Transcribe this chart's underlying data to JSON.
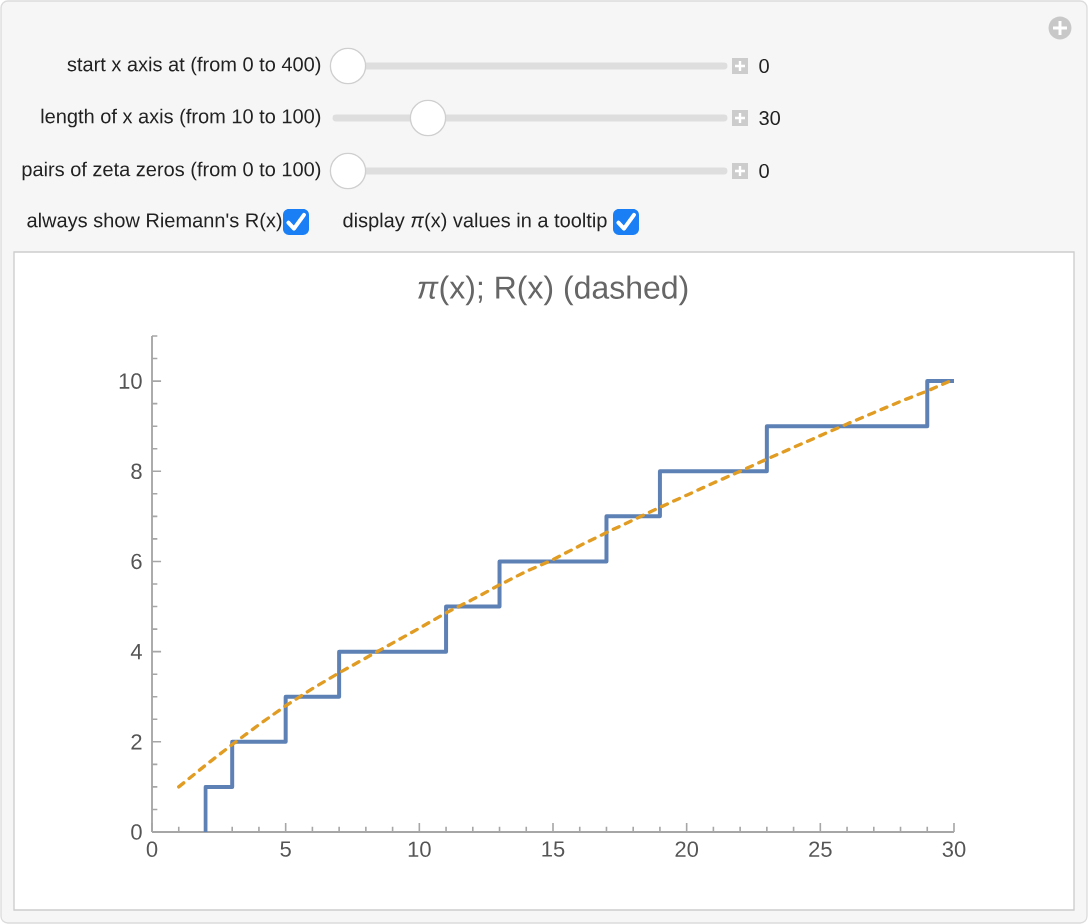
{
  "chart_data": [
    {
      "type": "other",
      "annotations": [
        "start x axis at (from 0 to 400)",
        "0",
        "length of x axis (from 10 to 100)",
        "30",
        "pairs of zeta zeros (from 0 to 100)",
        "0",
        "always show Riemann's R(x)",
        "display *π*(x) values in a tooltip"
      ]
    },
    {
      "type": "step",
      "title": "*π*(x); R(x) (dashed)",
      "xlim": [
        0,
        30
      ],
      "xticks": [
        0,
        {
          "value": 1,
          "label": null
        },
        {
          "value": 2,
          "label": null
        },
        {
          "value": 3,
          "label": null
        },
        {
          "value": 4,
          "label": null
        },
        5,
        {
          "value": 6,
          "label": null
        },
        {
          "value": 7,
          "label": null
        },
        {
          "value": 8,
          "label": null
        },
        {
          "value": 9,
          "label": null
        },
        10,
        {
          "value": 11,
          "label": null
        },
        {
          "value": 12,
          "label": null
        },
        {
          "value": 13,
          "label": null
        },
        {
          "value": 14,
          "label": null
        },
        15,
        {
          "value": 16,
          "label": null
        },
        {
          "value": 17,
          "label": null
        },
        {
          "value": 18,
          "label": null
        },
        {
          "value": 19,
          "label": null
        },
        20,
        {
          "value": 21,
          "label": null
        },
        {
          "value": 22,
          "label": null
        },
        {
          "value": 23,
          "label": null
        },
        {
          "value": 24,
          "label": null
        },
        25,
        {
          "value": 26,
          "label": null
        },
        {
          "value": 27,
          "label": null
        },
        {
          "value": 28,
          "label": null
        },
        {
          "value": 29,
          "label": null
        },
        30
      ],
      "ylim": [
        0,
        11
      ],
      "yticks": [
        0,
        {
          "value": 0.5,
          "label": null
        },
        {
          "value": 1,
          "label": null
        },
        {
          "value": 1.5,
          "label": null
        },
        2,
        {
          "value": 2.5,
          "label": null
        },
        {
          "value": 3,
          "label": null
        },
        {
          "value": 3.5,
          "label": null
        },
        4,
        {
          "value": 4.5,
          "label": null
        },
        {
          "value": 5,
          "label": null
        },
        {
          "value": 5.5,
          "label": null
        },
        6,
        {
          "value": 6.5,
          "label": null
        },
        {
          "value": 7,
          "label": null
        },
        {
          "value": 7.5,
          "label": null
        },
        8,
        {
          "value": 8.5,
          "label": null
        },
        {
          "value": 9,
          "label": null
        },
        {
          "value": 9.5,
          "label": null
        },
        10,
        {
          "value": 10.5,
          "label": null
        },
        {
          "value": 11,
          "label": null
        }
      ],
      "series": [
        {
          "type": "step",
          "color": "#5e81b5",
          "x": [
            2,
            2,
            3,
            5,
            7,
            11,
            13,
            17,
            19,
            23,
            29,
            30
          ],
          "values": [
            0,
            1,
            2,
            3,
            4,
            5,
            6,
            7,
            8,
            9,
            10,
            10
          ]
        },
        {
          "type": "line",
          "color": "#e19c24",
          "line_style": "dashed",
          "x": [
            1,
            2,
            3,
            4,
            5,
            6,
            7,
            8,
            9,
            10,
            11,
            12,
            13,
            14,
            15,
            16,
            17,
            18,
            19,
            20,
            21,
            22,
            23,
            24,
            25,
            26,
            27,
            28,
            29,
            30
          ],
          "values": [
            1.0,
            1.48,
            1.94,
            2.38,
            2.8,
            3.18,
            3.53,
            3.86,
            4.19,
            4.52,
            4.86,
            5.16,
            5.48,
            5.78,
            6.04,
            6.35,
            6.64,
            6.92,
            7.2,
            7.47,
            7.74,
            8.0,
            8.27,
            8.53,
            8.79,
            9.05,
            9.3,
            9.55,
            9.78,
            10.04
          ]
        }
      ]
    }
  ]
}
